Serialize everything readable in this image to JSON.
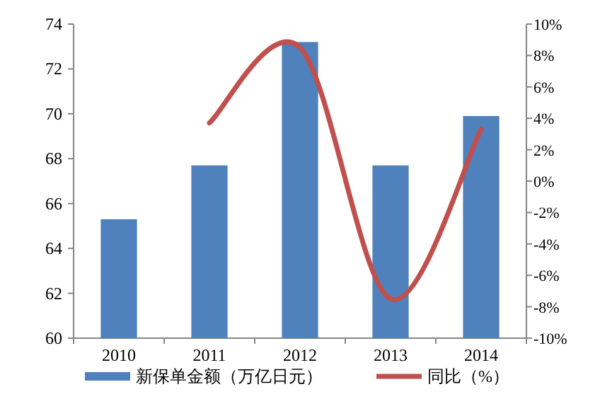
{
  "chart_data": {
    "type": "bar",
    "categories": [
      "2010",
      "2011",
      "2012",
      "2013",
      "2014"
    ],
    "series": [
      {
        "name": "新保单金额（万亿日元）",
        "color": "#4f81bd",
        "values": [
          65.3,
          67.7,
          73.2,
          67.7,
          69.9
        ]
      },
      {
        "name": "同比（%）",
        "type": "line",
        "axis": "y2",
        "color": "#c0504d",
        "values": [
          null,
          3.7,
          8.5,
          -7.5,
          3.3
        ]
      }
    ],
    "ylim": [
      60,
      74
    ],
    "yticks": [
      60,
      62,
      64,
      66,
      68,
      70,
      72,
      74
    ],
    "y2lim": [
      -10,
      10
    ],
    "y2ticks": [
      {
        "value": -10,
        "label": "-10%"
      },
      {
        "value": -8,
        "label": "-8%"
      },
      {
        "value": -6,
        "label": "-6%"
      },
      {
        "value": -4,
        "label": "-4%"
      },
      {
        "value": -2,
        "label": "-2%"
      },
      {
        "value": 0,
        "label": "0%"
      },
      {
        "value": 2,
        "label": "2%"
      },
      {
        "value": 4,
        "label": "4%"
      },
      {
        "value": 6,
        "label": "6%"
      },
      {
        "value": 8,
        "label": "8%"
      },
      {
        "value": 10,
        "label": "10%"
      }
    ],
    "legend": "bottom",
    "grid": false
  }
}
